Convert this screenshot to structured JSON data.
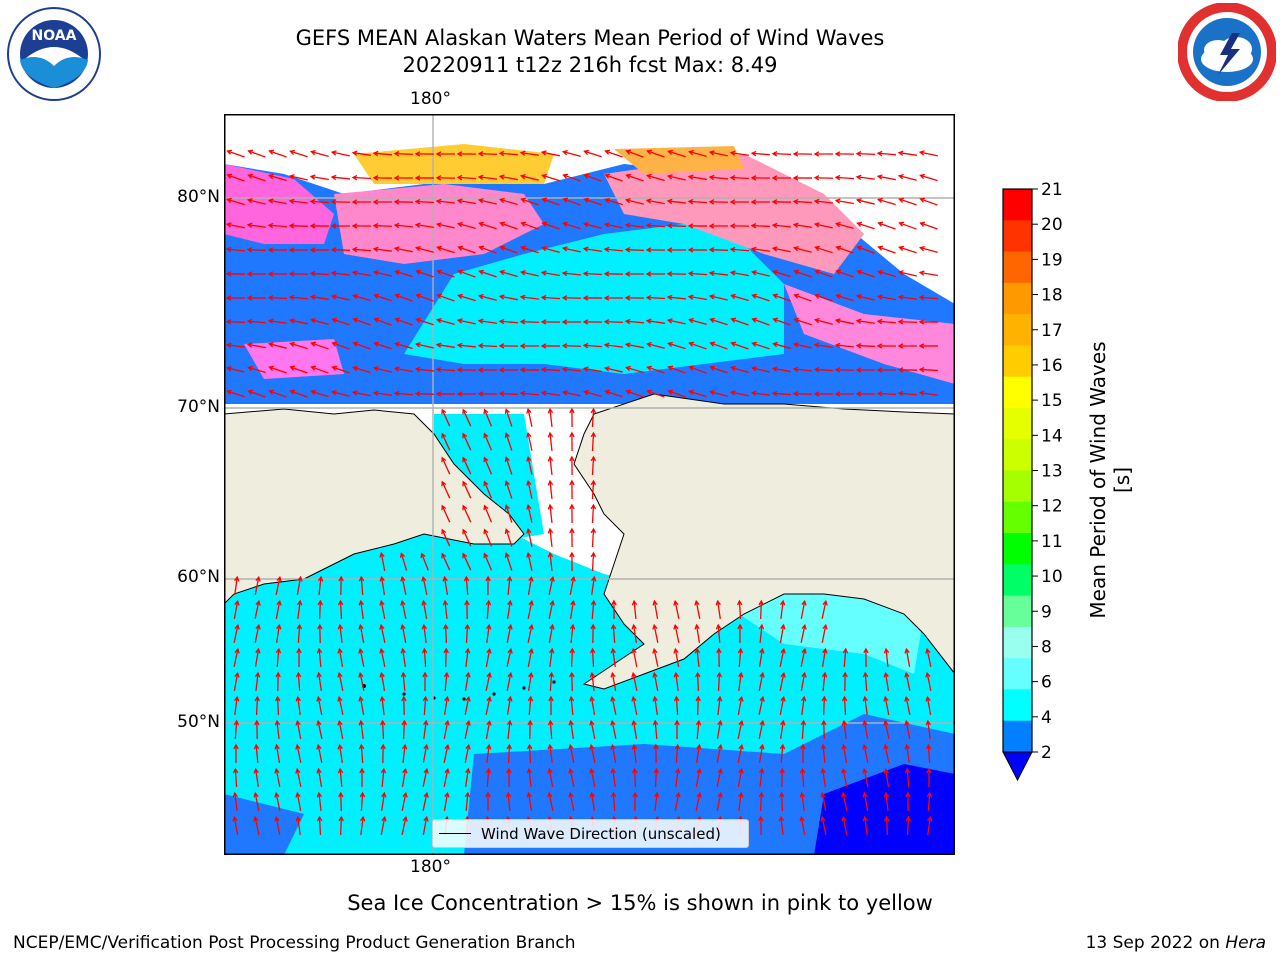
{
  "header": {
    "title_line1": "GEFS MEAN Alaskan Waters Mean Period of Wind Waves",
    "title_line2": "20220911 t12z 216h fcst   Max: 8.49"
  },
  "logos": {
    "left": {
      "icon": "noaa-logo-icon",
      "text": "NOAA"
    },
    "right": {
      "icon": "nws-logo-icon"
    }
  },
  "map": {
    "lon_label_top": "180°",
    "lon_label_bottom": "180°",
    "lat_labels": [
      "80°N",
      "70°N",
      "60°N",
      "50°N"
    ],
    "legend_label": "Wind Wave Direction (unscaled)",
    "land_color": "#efedde",
    "arrow_color": "#ff0000",
    "grid_color": "#b0b0b0"
  },
  "colorbar": {
    "label": "Mean Period of Wind Waves [s]",
    "ticks": [
      "21",
      "20",
      "19",
      "18",
      "17",
      "16",
      "15",
      "14",
      "13",
      "12",
      "11",
      "10",
      "9",
      "8",
      "6",
      "4",
      "2"
    ],
    "colors_top_to_bottom": [
      "#ff0000",
      "#ff3300",
      "#ff6600",
      "#ff9900",
      "#ffb300",
      "#ffcc00",
      "#ffff00",
      "#e6ff00",
      "#ccff00",
      "#a6ff00",
      "#66ff00",
      "#00ff00",
      "#00ff66",
      "#66ff99",
      "#99ffee",
      "#66ffff",
      "#00ffff",
      "#0080ff"
    ],
    "extend_color": "#0000ff"
  },
  "caption": "Sea Ice Concentration > 15% is shown in pink to yellow",
  "footer": {
    "left": "NCEP/EMC/Verification Post Processing Product Generation Branch",
    "right_date": "13 Sep 2022 on ",
    "right_system": "Hera"
  }
}
